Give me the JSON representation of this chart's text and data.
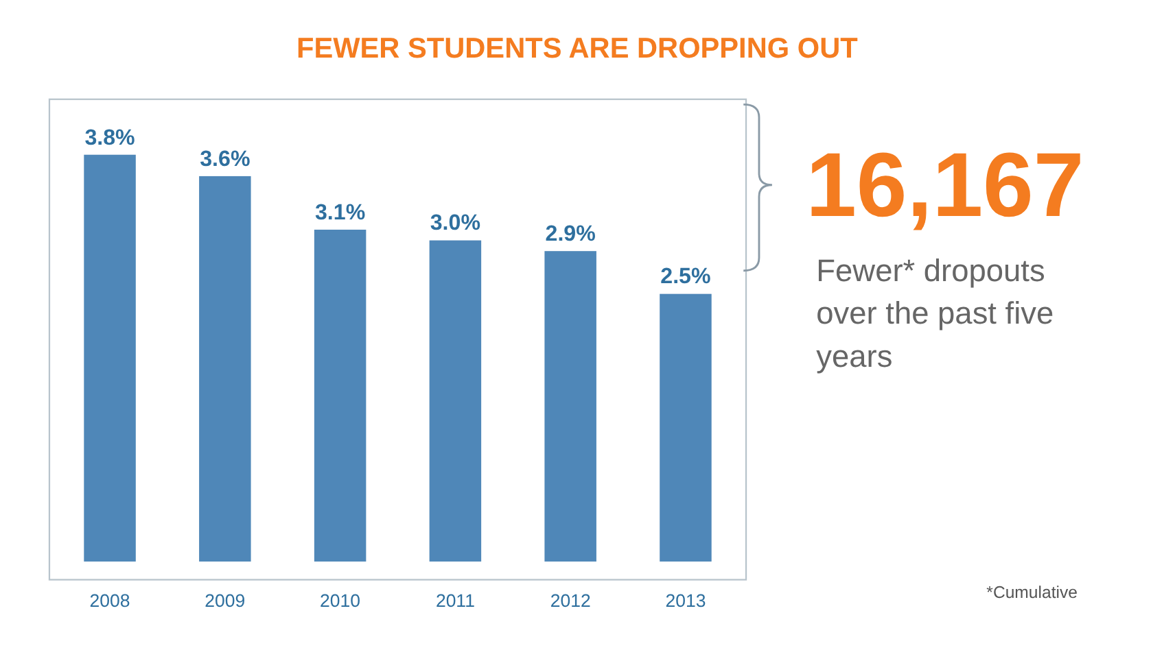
{
  "chart_data": {
    "type": "bar",
    "title": "FEWER STUDENTS ARE DROPPING OUT",
    "categories": [
      "2008",
      "2009",
      "2010",
      "2011",
      "2012",
      "2013"
    ],
    "values": [
      3.8,
      3.6,
      3.1,
      3.0,
      2.9,
      2.5
    ],
    "value_labels": [
      "3.8%",
      "3.6%",
      "3.1%",
      "3.0%",
      "2.9%",
      "2.5%"
    ],
    "color": "#4f87b8",
    "annotations": [
      "16,167",
      "Fewer* dropouts over the past five years",
      "*Cumulative"
    ]
  }
}
